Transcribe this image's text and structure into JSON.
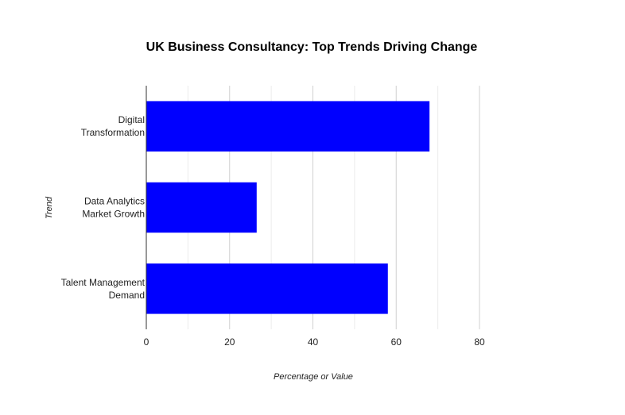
{
  "chart_data": {
    "type": "bar",
    "orientation": "horizontal",
    "title": "UK Business Consultancy: Top Trends Driving Change",
    "xlabel": "Percentage or Value",
    "ylabel": "Trend",
    "categories": [
      [
        "Digital",
        "Transformation"
      ],
      [
        "Data Analytics",
        "Market Growth"
      ],
      [
        "Talent Management",
        "Demand"
      ]
    ],
    "values": [
      68,
      26.5,
      58
    ],
    "xlim": [
      0,
      80
    ],
    "xticks": [
      0,
      20,
      40,
      60,
      80
    ],
    "grid": true,
    "legend": "none",
    "colors": {
      "bar": "#0000ff"
    }
  }
}
